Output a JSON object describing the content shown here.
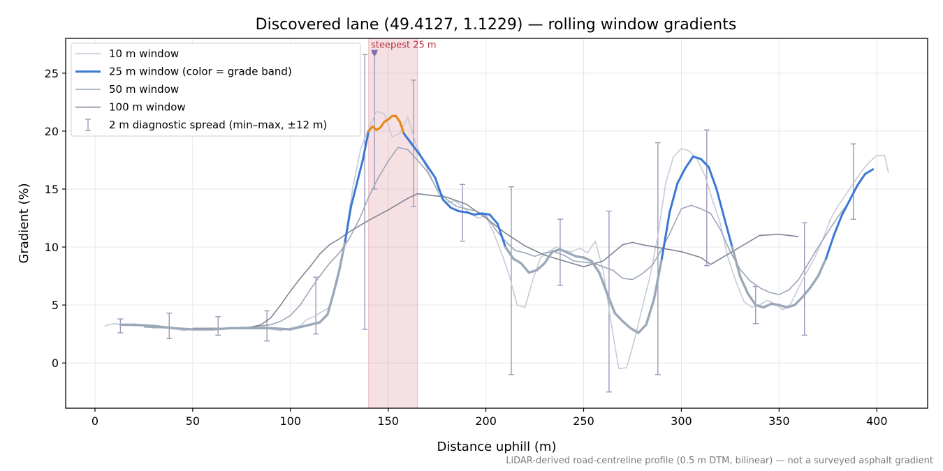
{
  "chart_data": {
    "type": "line",
    "title": "Discovered lane (49.4127, 1.1229) — rolling window gradients",
    "xlabel": "Distance uphill (m)",
    "ylabel": "Gradient (%)",
    "xlim": [
      -15,
      426
    ],
    "ylim": [
      -3.9,
      28
    ],
    "x_ticks": [
      0,
      50,
      100,
      150,
      200,
      250,
      300,
      350,
      400
    ],
    "y_ticks": [
      0,
      5,
      10,
      15,
      20,
      25
    ],
    "grid": true,
    "legend_position": "upper-left",
    "footnote": "LiDAR-derived road-centreline profile (0.5 m DTM, bilinear) — not a surveyed asphalt gradient",
    "highlight": {
      "x_start": 140,
      "x_end": 165,
      "label": "steepest 25 m",
      "marker": [
        143,
        26.7
      ],
      "color": "#d9848f"
    },
    "series": [
      {
        "name": "10 m window",
        "color": "#c6cbd8",
        "x": [
          5,
          10,
          15,
          20,
          25,
          30,
          35,
          40,
          45,
          50,
          55,
          60,
          65,
          70,
          75,
          80,
          85,
          90,
          95,
          100,
          105,
          108,
          112,
          116,
          120,
          124,
          128,
          132,
          136,
          140,
          144,
          148,
          152,
          156,
          160,
          164,
          168,
          172,
          176,
          180,
          184,
          188,
          192,
          196,
          200,
          204,
          208,
          212,
          216,
          220,
          224,
          228,
          232,
          236,
          240,
          244,
          248,
          252,
          256,
          260,
          264,
          268,
          272,
          276,
          280,
          284,
          288,
          292,
          296,
          300,
          304,
          308,
          312,
          316,
          320,
          324,
          328,
          332,
          336,
          340,
          344,
          348,
          352,
          356,
          360,
          364,
          368,
          372,
          376,
          380,
          384,
          388,
          392,
          396,
          400,
          404,
          406
        ],
        "y": [
          3.2,
          3.4,
          3.3,
          3.2,
          3.3,
          3.0,
          3.1,
          3.0,
          2.8,
          2.9,
          2.9,
          3.0,
          2.9,
          3.0,
          3.1,
          3.0,
          3.2,
          2.9,
          2.8,
          3.0,
          3.2,
          3.7,
          4.0,
          4.4,
          4.8,
          7.0,
          10.8,
          15.2,
          18.5,
          20.2,
          21.7,
          21.5,
          19.5,
          19.8,
          21.2,
          19.0,
          17.4,
          16.0,
          14.5,
          13.8,
          14.0,
          13.5,
          12.9,
          12.5,
          12.7,
          11.2,
          9.5,
          7.5,
          5.0,
          4.8,
          7.2,
          9.1,
          9.6,
          10.0,
          9.7,
          9.6,
          9.9,
          9.5,
          10.5,
          8.0,
          3.5,
          -0.5,
          -0.4,
          2.0,
          4.8,
          7.5,
          11.0,
          15.5,
          17.8,
          18.5,
          18.3,
          17.6,
          16.2,
          14.0,
          12.0,
          9.0,
          7.0,
          5.3,
          4.8,
          5.0,
          5.4,
          5.1,
          4.6,
          5.1,
          6.5,
          7.8,
          9.0,
          10.5,
          12.3,
          13.5,
          14.5,
          15.5,
          16.5,
          17.3,
          17.9,
          17.9,
          16.4
        ]
      },
      {
        "name": "25 m window (color = grade band)",
        "color": "#3a78d4",
        "color_steep": "#e4870f",
        "color_moderate": "#9aa8b8",
        "x": [
          13,
          20,
          30,
          40,
          50,
          60,
          70,
          80,
          90,
          100,
          105,
          110,
          115,
          119,
          122,
          125,
          128,
          131,
          134,
          137,
          140,
          142,
          144,
          146,
          148,
          150,
          152,
          154,
          156,
          158,
          162,
          166,
          170,
          174,
          178,
          182,
          186,
          190,
          194,
          198,
          202,
          206,
          210,
          214,
          218,
          222,
          226,
          230,
          234,
          238,
          242,
          246,
          250,
          254,
          258,
          262,
          266,
          270,
          274,
          278,
          282,
          286,
          290,
          294,
          298,
          302,
          306,
          310,
          314,
          318,
          322,
          326,
          330,
          334,
          338,
          342,
          346,
          350,
          354,
          358,
          362,
          366,
          370,
          374,
          378,
          382,
          386,
          390,
          394,
          398
        ],
        "y": [
          3.3,
          3.3,
          3.2,
          3.0,
          2.9,
          2.9,
          3.0,
          3.0,
          3.0,
          2.9,
          3.1,
          3.3,
          3.5,
          4.2,
          6.0,
          8.0,
          10.5,
          13.5,
          15.5,
          17.5,
          20.0,
          20.4,
          20.1,
          20.3,
          20.8,
          21.0,
          21.3,
          21.3,
          20.8,
          19.8,
          18.9,
          18.0,
          17.0,
          16.0,
          14.1,
          13.4,
          13.1,
          13.0,
          12.8,
          12.9,
          12.8,
          12.0,
          10.0,
          9.0,
          8.6,
          7.8,
          8.0,
          8.6,
          9.6,
          9.8,
          9.5,
          9.2,
          9.1,
          8.8,
          7.8,
          6.0,
          4.3,
          3.6,
          3.0,
          2.6,
          3.3,
          5.5,
          9.0,
          13.0,
          15.5,
          16.8,
          17.8,
          17.6,
          16.9,
          15.0,
          12.5,
          10.0,
          7.5,
          6.0,
          5.0,
          4.8,
          5.1,
          5.0,
          4.8,
          5.0,
          5.7,
          6.5,
          7.5,
          9.0,
          11.0,
          12.7,
          14.0,
          15.3,
          16.3,
          16.7
        ]
      },
      {
        "name": "50 m window",
        "color": "#9ca6b7",
        "x": [
          25,
          40,
          50,
          60,
          70,
          80,
          90,
          95,
          100,
          105,
          110,
          115,
          120,
          125,
          130,
          135,
          140,
          145,
          150,
          155,
          160,
          165,
          170,
          175,
          180,
          185,
          190,
          195,
          200,
          205,
          210,
          215,
          220,
          225,
          230,
          235,
          240,
          245,
          250,
          255,
          260,
          265,
          270,
          275,
          280,
          285,
          290,
          295,
          300,
          305,
          310,
          315,
          320,
          325,
          330,
          335,
          340,
          345,
          350,
          355,
          360,
          365,
          370,
          375,
          380,
          386
        ],
        "y": [
          3.1,
          3.0,
          2.9,
          2.9,
          3.0,
          3.1,
          3.3,
          3.6,
          4.1,
          5.0,
          6.3,
          7.5,
          8.6,
          9.5,
          10.7,
          12.3,
          14.3,
          16.0,
          17.4,
          18.6,
          18.4,
          17.5,
          16.5,
          15.0,
          14.1,
          13.5,
          13.3,
          13.1,
          12.7,
          11.5,
          10.5,
          9.7,
          9.5,
          9.2,
          9.5,
          9.6,
          9.3,
          8.8,
          8.7,
          8.6,
          8.3,
          8.0,
          7.3,
          7.2,
          7.7,
          8.4,
          9.8,
          11.5,
          13.3,
          13.6,
          13.3,
          12.9,
          11.5,
          9.6,
          8.1,
          7.1,
          6.5,
          6.1,
          5.9,
          6.3,
          7.2,
          8.6,
          10.0,
          11.3,
          12.6,
          13.9
        ]
      },
      {
        "name": "100 m window",
        "color": "#7c8595",
        "x": [
          50,
          60,
          70,
          75,
          80,
          85,
          90,
          95,
          100,
          105,
          110,
          115,
          120,
          125,
          130,
          140,
          150,
          160,
          165,
          170,
          180,
          190,
          200,
          210,
          220,
          230,
          240,
          250,
          260,
          265,
          270,
          275,
          280,
          290,
          300,
          310,
          315,
          320,
          330,
          340,
          350,
          360
        ],
        "y": [
          3.0,
          3.0,
          3.0,
          3.0,
          3.1,
          3.3,
          3.9,
          5.0,
          6.2,
          7.3,
          8.3,
          9.4,
          10.2,
          10.7,
          11.3,
          12.3,
          13.2,
          14.2,
          14.6,
          14.5,
          14.3,
          13.7,
          12.5,
          11.2,
          10.1,
          9.3,
          8.8,
          8.3,
          8.8,
          9.5,
          10.2,
          10.4,
          10.2,
          9.9,
          9.6,
          9.1,
          8.5,
          9.0,
          10.0,
          11.0,
          11.1,
          10.9
        ]
      }
    ],
    "diagnostic_spread": {
      "name": "2 m diagnostic spread (min–max, ±12 m)",
      "color": "#9f96b9",
      "x": [
        13,
        38,
        63,
        88,
        113,
        138,
        143,
        163,
        188,
        213,
        238,
        263,
        288,
        313,
        338,
        363,
        388
      ],
      "min": [
        2.6,
        2.1,
        2.4,
        1.9,
        2.5,
        2.9,
        15.0,
        13.5,
        10.5,
        -1.0,
        6.7,
        -2.5,
        -1.0,
        8.4,
        3.4,
        2.4,
        12.4
      ],
      "max": [
        3.8,
        4.3,
        4.0,
        4.5,
        7.4,
        26.6,
        26.7,
        24.4,
        15.4,
        15.2,
        12.4,
        13.1,
        19.0,
        20.1,
        6.6,
        12.1,
        18.9
      ]
    }
  }
}
